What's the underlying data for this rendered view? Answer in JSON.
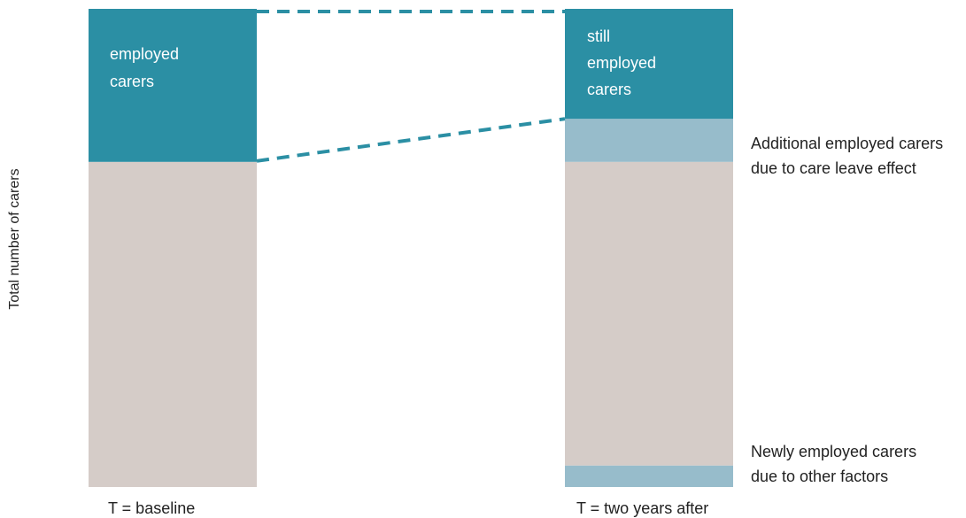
{
  "chart_data": {
    "type": "bar",
    "stacked": true,
    "ylabel": "Total number of carers",
    "xlabel": "",
    "title": "",
    "ylim": [
      0,
      100
    ],
    "grid": false,
    "categories": [
      "T = baseline",
      "T = two years after"
    ],
    "series": [
      {
        "key": "other",
        "values": [
          68,
          0
        ],
        "color": "#d5ccc8"
      },
      {
        "key": "new_other",
        "values": [
          0,
          4.5
        ],
        "color": "#97bccb"
      },
      {
        "key": "other_after",
        "values": [
          0,
          63.5
        ],
        "color": "#d5ccc8"
      },
      {
        "key": "additional_leave",
        "values": [
          0,
          9
        ],
        "color": "#97bccb"
      },
      {
        "key": "employed",
        "values": [
          32,
          0
        ],
        "color": "#2b8fa4"
      },
      {
        "key": "still_employed",
        "values": [
          0,
          23
        ],
        "color": "#2b8fa4"
      }
    ],
    "segment_labels": {
      "baseline": [
        "employed",
        "carers"
      ],
      "after": [
        "still",
        "employed",
        "carers"
      ]
    },
    "annotations": {
      "additional": [
        "Additional employed carers",
        "due to care leave effect"
      ],
      "newly": [
        "Newly employed carers",
        "due to other factors"
      ]
    },
    "connector_color": "#2b8fa4"
  }
}
